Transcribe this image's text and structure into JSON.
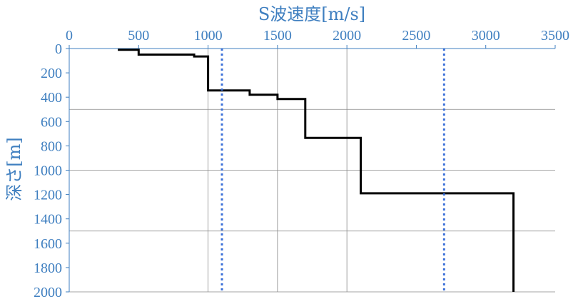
{
  "chart_data": {
    "type": "line",
    "title": "",
    "xlabel": "S波速度[m/s]",
    "ylabel": "深さ[m]",
    "xlim": [
      0,
      3500
    ],
    "ylim": [
      0,
      2000
    ],
    "y_inverted": true,
    "x_axis_position": "top",
    "x_ticks": [
      0,
      500,
      1000,
      1500,
      2000,
      2500,
      3000,
      3500
    ],
    "y_ticks": [
      0,
      200,
      400,
      600,
      800,
      1000,
      1200,
      1400,
      1600,
      1800,
      2000
    ],
    "grid": "horizontal at 500, 1000, 1500; vertical at 1000, 1500, 2000",
    "axis_color": "#3f7fc0",
    "series": [
      {
        "style": "solid-step",
        "color": "#000000",
        "points": [
          [
            350,
            10
          ],
          [
            500,
            10
          ],
          [
            500,
            50
          ],
          [
            900,
            50
          ],
          [
            900,
            65
          ],
          [
            1000,
            65
          ],
          [
            1000,
            345
          ],
          [
            1300,
            345
          ],
          [
            1300,
            380
          ],
          [
            1500,
            380
          ],
          [
            1500,
            415
          ],
          [
            1700,
            415
          ],
          [
            1700,
            735
          ],
          [
            2100,
            735
          ],
          [
            2100,
            1190
          ],
          [
            3200,
            1190
          ],
          [
            3200,
            2000
          ]
        ]
      },
      {
        "style": "dotted-vertical",
        "color": "#3a6fd8",
        "x": 1100,
        "y_range": [
          0,
          2000
        ]
      },
      {
        "style": "dotted-vertical",
        "color": "#3a6fd8",
        "x": 2700,
        "y_range": [
          0,
          2000
        ]
      }
    ]
  }
}
